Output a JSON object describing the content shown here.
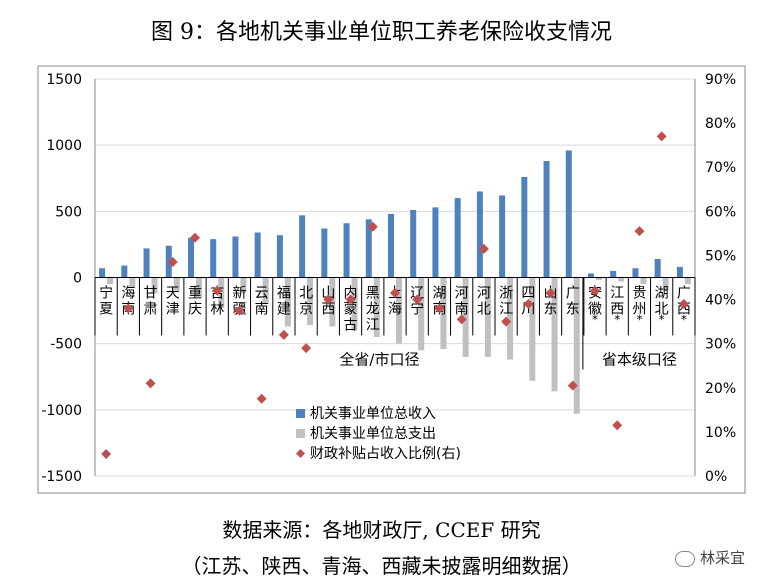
{
  "page": {
    "title": "图 9：各地机关事业单位职工养老保险收支情况",
    "source_line1": "数据来源：各地财政厅, CCEF 研究",
    "source_line2": "（江苏、陕西、青海、西藏未披露明细数据）",
    "watermark": "林采宜"
  },
  "chart_data": {
    "type": "bar",
    "categories": [
      "宁夏",
      "海南",
      "甘肃",
      "天津",
      "重庆",
      "吉林",
      "新疆",
      "云南",
      "福建",
      "北京",
      "山西",
      "内蒙古",
      "黑龙江",
      "上海",
      "辽宁",
      "湖南",
      "河南",
      "河北",
      "浙江",
      "四川",
      "山东",
      "广东",
      "安徽*",
      "江西*",
      "贵州*",
      "湖北*",
      "广西*"
    ],
    "series": [
      {
        "name": "机关事业单位总收入",
        "axis": "left",
        "kind": "bar",
        "color": "#4f81bd",
        "values": [
          70,
          90,
          220,
          240,
          300,
          290,
          310,
          340,
          320,
          470,
          370,
          410,
          440,
          480,
          510,
          530,
          600,
          650,
          620,
          760,
          880,
          960,
          30,
          50,
          70,
          140,
          80
        ]
      },
      {
        "name": "机关事业单位总支出",
        "axis": "left",
        "kind": "bar",
        "color": "#c0c0c0",
        "values": [
          -50,
          -80,
          -120,
          -100,
          -150,
          -230,
          -120,
          -200,
          -370,
          -360,
          -370,
          -400,
          -450,
          -500,
          -550,
          -540,
          -600,
          -600,
          -620,
          -780,
          -860,
          -1030,
          -20,
          -30,
          -50,
          -100,
          -50
        ]
      },
      {
        "name": "财政补贴占收入比例(右)",
        "axis": "right",
        "kind": "scatter",
        "color": "#c0504d",
        "values": [
          0.05,
          0.38,
          0.21,
          0.485,
          0.54,
          0.42,
          0.375,
          0.175,
          0.32,
          0.29,
          0.4,
          0.4,
          0.565,
          0.415,
          0.4,
          0.38,
          0.355,
          0.515,
          0.35,
          0.39,
          0.415,
          0.205,
          0.42,
          0.115,
          0.555,
          0.77,
          0.39
        ]
      }
    ],
    "ylim": [
      -1500,
      1500
    ],
    "y_ticks": [
      "1500",
      "1000",
      "500",
      "0",
      "-500",
      "-1000",
      "-1500"
    ],
    "y2lim": [
      0,
      0.9
    ],
    "y2_ticks": [
      "90%",
      "80%",
      "70%",
      "60%",
      "50%",
      "40%",
      "30%",
      "20%",
      "10%",
      "0%"
    ],
    "group_labels": [
      "全省/市口径",
      "省本级口径"
    ],
    "legend_position": "bottom-center"
  }
}
